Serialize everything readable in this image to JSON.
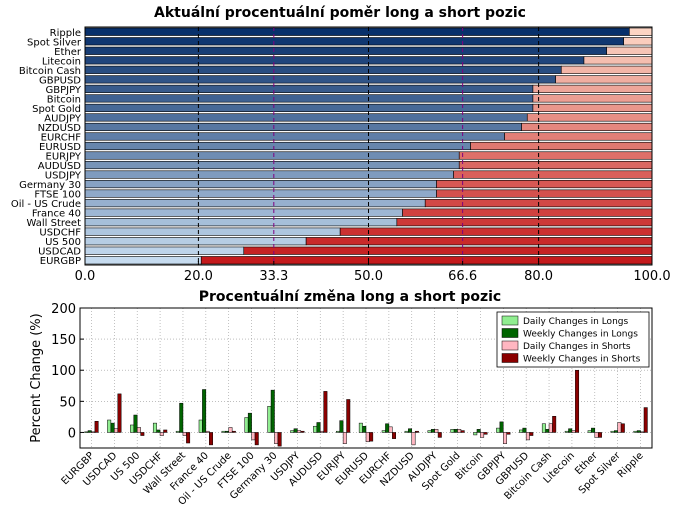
{
  "chart_data": [
    {
      "type": "bar",
      "orientation": "horizontal-stacked",
      "title": "Aktuální procentuální poměr long a short pozic",
      "xlim": [
        0,
        100
      ],
      "xticks": [
        0.0,
        20.0,
        33.3,
        50.0,
        66.6,
        80.0,
        100.0
      ],
      "xtick_labels": [
        "0.0",
        "20.0",
        "33.3",
        "50.0",
        "66.6",
        "80.0",
        "100.0"
      ],
      "highlight_ticks": [
        "33.3",
        "66.6"
      ],
      "colors": {
        "highlight_tick": "#800080",
        "long_dark": "#08306b",
        "long_light": "#c6dbef",
        "short_light": "#fcd5c4",
        "short_dark": "#c41a1c"
      },
      "categories": [
        "Ripple",
        "Spot Silver",
        "Ether",
        "Litecoin",
        "Bitcoin Cash",
        "GBPUSD",
        "GBPJPY",
        "Bitcoin",
        "Spot Gold",
        "AUDJPY",
        "NZDUSD",
        "EURCHF",
        "EURUSD",
        "EURJPY",
        "AUDUSD",
        "USDJPY",
        "Germany 30",
        "FTSE 100",
        "Oil - US Crude",
        "France 40",
        "Wall Street",
        "USDCHF",
        "US 500",
        "USDCAD",
        "EURGBP"
      ],
      "long_pct": [
        96,
        95,
        92,
        88,
        84,
        83,
        79,
        79,
        79,
        78,
        77,
        74,
        68,
        66,
        66,
        65,
        62,
        62,
        60,
        56,
        55,
        45,
        39,
        28,
        20.5
      ]
    },
    {
      "type": "bar",
      "title": "Procentuální změna long a short pozic",
      "ylabel": "Percent Change (%)",
      "ylim": [
        -25,
        200
      ],
      "yticks": [
        0,
        50,
        100,
        150,
        200
      ],
      "grid": true,
      "legend_placement": "top-right",
      "categories": [
        "EURGBP",
        "USDCAD",
        "US 500",
        "USDCHF",
        "Wall Street",
        "France 40",
        "Oil - US Crude",
        "FTSE 100",
        "Germany 30",
        "USDJPY",
        "AUDUSD",
        "EURJPY",
        "EURUSD",
        "EURCHF",
        "NZDUSD",
        "AUDJPY",
        "Spot Gold",
        "Bitcoin",
        "GBPJPY",
        "GBPUSD",
        "Bitcoin Cash",
        "Litecoin",
        "Ether",
        "Spot Silver",
        "Ripple"
      ],
      "series": [
        {
          "name": "Daily Changes in Longs",
          "color": "#90ee90",
          "values": [
            1,
            20,
            12,
            15,
            2,
            20,
            2,
            24,
            42,
            3,
            10,
            2,
            15,
            3,
            2,
            3,
            5,
            -4,
            7,
            4,
            14,
            2,
            3,
            2,
            2
          ]
        },
        {
          "name": "Weekly Changes in Longs",
          "color": "#006400",
          "values": [
            3,
            15,
            28,
            4,
            47,
            69,
            2,
            31,
            68,
            6,
            16,
            19,
            10,
            14,
            6,
            5,
            5,
            5,
            17,
            7,
            5,
            6,
            7,
            3,
            3
          ]
        },
        {
          "name": "Daily Changes in Shorts",
          "color": "#ffb6c1",
          "values": [
            1,
            6,
            8,
            -5,
            -5,
            2,
            8,
            -12,
            -18,
            3,
            2,
            -18,
            -15,
            9,
            -20,
            5,
            5,
            -8,
            -18,
            -12,
            14,
            3,
            -8,
            16,
            1
          ]
        },
        {
          "name": "Weekly Changes in Shorts",
          "color": "#8b0000",
          "values": [
            18,
            62,
            -5,
            4,
            -17,
            -20,
            2,
            -20,
            -22,
            2,
            66,
            53,
            -14,
            -10,
            2,
            -8,
            3,
            -3,
            -3,
            -5,
            26,
            100,
            -8,
            14,
            40
          ]
        }
      ]
    }
  ]
}
